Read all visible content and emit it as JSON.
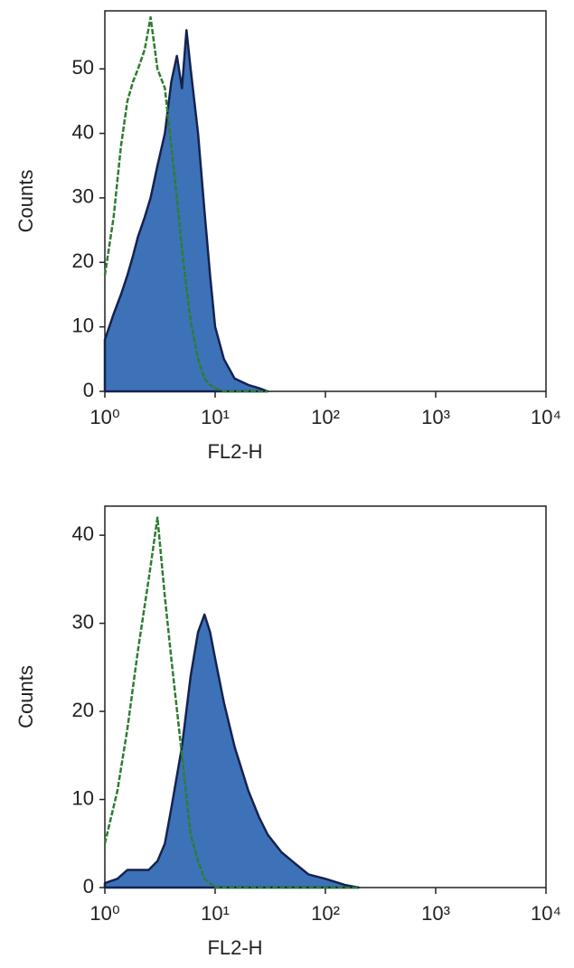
{
  "chart_data": [
    {
      "type": "area",
      "xscale": "log",
      "xlabel": "FL2-H",
      "ylabel": "Counts",
      "xlim": [
        1,
        10000
      ],
      "ylim": [
        0,
        59
      ],
      "xticks": [
        {
          "value": 1,
          "label": "10⁰"
        },
        {
          "value": 10,
          "label": "10¹"
        },
        {
          "value": 100,
          "label": "10²"
        },
        {
          "value": 1000,
          "label": "10³"
        },
        {
          "value": 10000,
          "label": "10⁴"
        }
      ],
      "yticks": [
        0,
        10,
        20,
        30,
        40,
        50
      ],
      "x": [
        1,
        1.2,
        1.4,
        1.6,
        1.8,
        2,
        2.3,
        2.6,
        3,
        3.5,
        4,
        4.5,
        5,
        5.5,
        6,
        7,
        8,
        9,
        10,
        12,
        15,
        20,
        25,
        30
      ],
      "series": [
        {
          "color": "#3d72b8",
          "fill": true,
          "values": [
            8,
            12,
            15,
            18,
            21,
            24,
            27,
            30,
            35,
            40,
            48,
            52,
            47,
            56,
            50,
            40,
            28,
            18,
            10,
            5,
            2,
            1,
            0.5,
            0
          ]
        },
        {
          "color": "#2e7d32",
          "fill": false,
          "values": [
            18,
            27,
            38,
            45,
            48,
            50,
            53,
            58,
            50,
            47,
            38,
            30,
            22,
            16,
            11,
            5,
            2,
            1,
            0.5,
            0,
            0,
            0,
            0,
            0
          ]
        }
      ]
    },
    {
      "type": "area",
      "xscale": "log",
      "xlabel": "FL2-H",
      "ylabel": "Counts",
      "xlim": [
        1,
        10000
      ],
      "ylim": [
        0,
        43.3
      ],
      "xticks": [
        {
          "value": 1,
          "label": "10⁰"
        },
        {
          "value": 10,
          "label": "10¹"
        },
        {
          "value": 100,
          "label": "10²"
        },
        {
          "value": 1000,
          "label": "10³"
        },
        {
          "value": 10000,
          "label": "10⁴"
        }
      ],
      "yticks": [
        0,
        10,
        20,
        30,
        40
      ],
      "x": [
        1,
        1.3,
        1.6,
        2,
        2.5,
        3,
        3.5,
        4,
        5,
        6,
        7,
        8,
        9,
        10,
        12,
        15,
        20,
        25,
        30,
        40,
        50,
        70,
        100,
        150,
        200
      ],
      "series": [
        {
          "color": "#3d72b8",
          "fill": true,
          "values": [
            0.5,
            1,
            2,
            2,
            2,
            3,
            5,
            9,
            16,
            24,
            29,
            31,
            29,
            26,
            21,
            16,
            11,
            8,
            6,
            4,
            3,
            1.5,
            1,
            0.3,
            0
          ]
        },
        {
          "color": "#2e7d32",
          "fill": false,
          "values": [
            5,
            11,
            18,
            27,
            35,
            42,
            33,
            26,
            15,
            6,
            3,
            1,
            0.5,
            0,
            0,
            0,
            0,
            0,
            0,
            0,
            0,
            0,
            0,
            0,
            0
          ]
        }
      ]
    }
  ]
}
